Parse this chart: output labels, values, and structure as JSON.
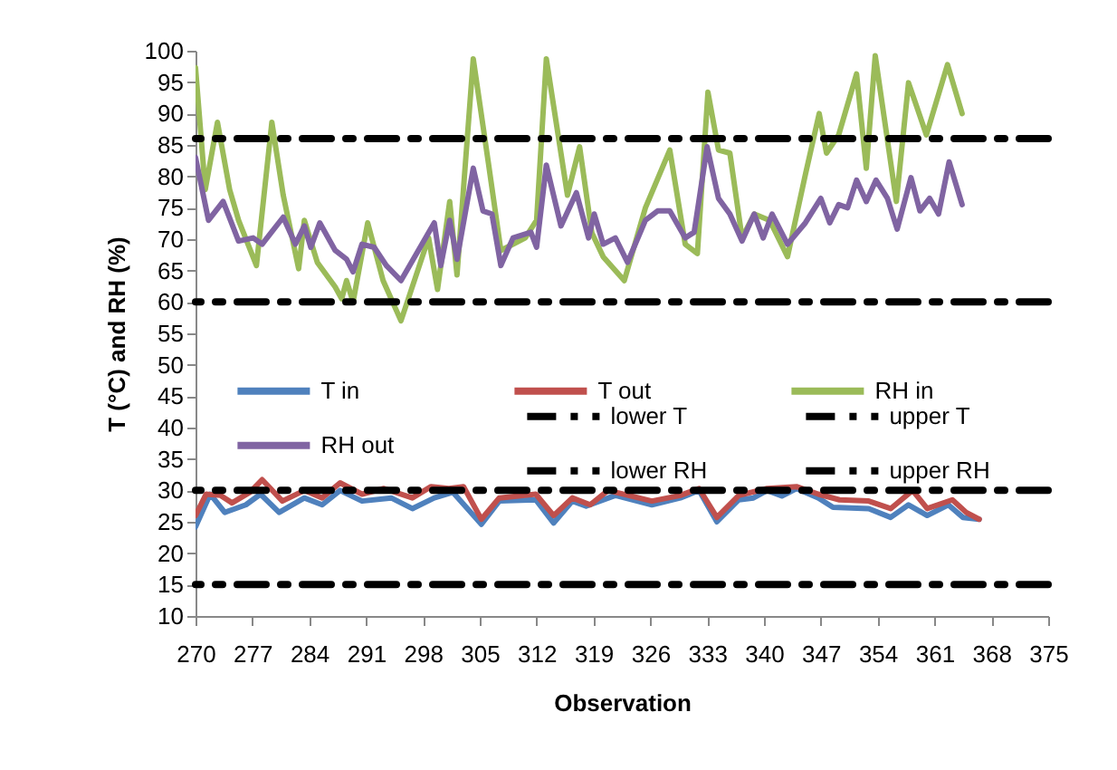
{
  "chart_data": {
    "type": "line",
    "xlabel": "Observation",
    "ylabel": "T (°C) and RH (%)",
    "xlim": [
      270,
      375
    ],
    "xticks": [
      270,
      277,
      284,
      291,
      298,
      305,
      312,
      319,
      326,
      333,
      340,
      347,
      354,
      361,
      368,
      375
    ],
    "ylim": [
      10,
      100
    ],
    "yticks": [
      10,
      15,
      20,
      25,
      30,
      35,
      40,
      45,
      50,
      55,
      60,
      65,
      70,
      75,
      80,
      85,
      90,
      95,
      100
    ],
    "grid": false,
    "legend": "center",
    "marker": "none",
    "line_style": "solid",
    "series": [
      {
        "name": "T in",
        "color": "#4f81bd",
        "x": [
          270,
          271.8,
          273.6,
          276.2,
          278,
          280.3,
          283.4,
          285.6,
          287.8,
          290.5,
          294.1,
          296.7,
          299.4,
          301.7,
          305.2,
          307.4,
          311.9,
          314.1,
          316.4,
          318.1,
          321.7,
          326.2,
          329.7,
          332,
          334.2,
          336.9,
          338.7,
          340.4,
          342.2,
          344,
          346.7,
          348.5,
          352.9,
          355.6,
          357.8,
          360.1,
          362.7,
          364.5,
          366.5
        ],
        "values": [
          24.2,
          29.4,
          26.5,
          27.7,
          29.4,
          26.5,
          28.8,
          27.7,
          30,
          28.3,
          28.8,
          27.1,
          28.8,
          29.7,
          24.6,
          28.3,
          28.5,
          24.8,
          28.3,
          27.5,
          29.2,
          27.7,
          28.8,
          30,
          25,
          28.5,
          28.8,
          30,
          29.1,
          30.3,
          28.8,
          27.3,
          27.1,
          25.7,
          27.7,
          26,
          27.7,
          25.7,
          25.4
        ]
      },
      {
        "name": "T out",
        "color": "#c0504d",
        "x": [
          270,
          271.3,
          273.1,
          274.5,
          276.7,
          278.2,
          280.7,
          283.4,
          285.6,
          287.8,
          290.5,
          293.2,
          296.7,
          299,
          301.2,
          303,
          305.2,
          307.4,
          311.9,
          314.1,
          316.4,
          318.6,
          320.8,
          326.2,
          329.7,
          332,
          334.2,
          336.9,
          340.4,
          344,
          346.7,
          349.3,
          352.9,
          355.6,
          358.3,
          360.1,
          363.2,
          364.9,
          366.5
        ],
        "values": [
          26,
          29.4,
          29.2,
          28,
          29.7,
          31.7,
          28.3,
          30,
          28.8,
          31.2,
          29.4,
          30.3,
          28.8,
          30.6,
          30.3,
          30.6,
          25.4,
          28.8,
          29.4,
          26,
          28.8,
          27.7,
          30,
          28.3,
          29.2,
          30.3,
          25.7,
          29.2,
          30.3,
          30.6,
          29.4,
          28.5,
          28.3,
          27.1,
          30,
          27.1,
          28.5,
          26.5,
          25.4
        ]
      },
      {
        "name": "RH in",
        "color": "#9bbb59",
        "x": [
          270,
          271.2,
          272.7,
          274.2,
          275.3,
          277.5,
          279.4,
          280.8,
          282.7,
          283.4,
          285,
          287.2,
          288,
          288.6,
          289.4,
          291.2,
          293.1,
          295.3,
          298.7,
          299.8,
          301.3,
          302.2,
          304.2,
          306.1,
          307.6,
          310.6,
          312,
          313.2,
          315.8,
          317.3,
          318.8,
          320.2,
          322.8,
          325.4,
          328.4,
          330.3,
          331.8,
          333.1,
          334.4,
          335.8,
          337.3,
          338.8,
          340.7,
          342.9,
          345.1,
          346.8,
          347.7,
          349.2,
          351.4,
          352.6,
          353.7,
          356.3,
          357.8,
          360,
          362.6,
          364.4
        ],
        "values": [
          97.3,
          77.9,
          88.6,
          77.9,
          73,
          65.8,
          88.6,
          77,
          65.3,
          73,
          66.3,
          62.4,
          60.5,
          63.4,
          60,
          72.6,
          63.4,
          57,
          70.2,
          62,
          76,
          64.3,
          98.7,
          81.8,
          68.2,
          70.2,
          73,
          98.7,
          77,
          84.7,
          71,
          67.2,
          63.4,
          75,
          84.2,
          69.2,
          67.7,
          93.4,
          84.2,
          83.7,
          70.2,
          74,
          73,
          67.2,
          80.3,
          90,
          83.7,
          86.6,
          96.3,
          81.3,
          99.2,
          76,
          94.9,
          86.6,
          97.8,
          90
        ]
      },
      {
        "name": "RH out",
        "color": "#8064a2",
        "x": [
          270,
          271.6,
          273.4,
          275.3,
          277.1,
          278.2,
          280.8,
          282.3,
          283.4,
          284.2,
          285.3,
          287.2,
          288.6,
          289.4,
          290.5,
          292,
          293.5,
          295.3,
          299.4,
          300.2,
          301.3,
          302.2,
          304.2,
          305.4,
          306.5,
          307.6,
          309.1,
          311.3,
          312,
          313.2,
          315,
          316.9,
          318.4,
          319.1,
          320.2,
          321.7,
          323.2,
          325.4,
          326.9,
          328.4,
          330.3,
          331.4,
          333,
          334.4,
          335.8,
          337.3,
          338.8,
          339.9,
          341,
          342.9,
          345.1,
          347,
          348.1,
          349.2,
          350.3,
          351.4,
          352.6,
          353.8,
          355.2,
          356.4,
          358.1,
          359.2,
          360.4,
          361.5,
          362.8,
          364.4
        ],
        "values": [
          83,
          73,
          76,
          69.7,
          70.2,
          69.2,
          73.5,
          69.2,
          72.1,
          68.7,
          72.6,
          68.2,
          66.8,
          64.8,
          69.2,
          68.7,
          65.8,
          63.4,
          72.6,
          65.8,
          73,
          66.8,
          81.3,
          74.5,
          74,
          65.8,
          70.2,
          71.1,
          68.7,
          81.8,
          72.1,
          77.4,
          70.2,
          74,
          69.2,
          70.2,
          66.3,
          73,
          74.5,
          74.5,
          70.2,
          71.1,
          84.7,
          76.5,
          74,
          69.7,
          74,
          70.2,
          74,
          69.2,
          72.6,
          76.5,
          72.6,
          75.5,
          75,
          79.4,
          76,
          79.4,
          76.5,
          71.6,
          79.8,
          74.5,
          76.5,
          74,
          82.3,
          75.5
        ]
      }
    ],
    "ref_lines": [
      {
        "axis": "y",
        "value": 15,
        "label": "lower T",
        "color": "#000000",
        "line_style": "dashed"
      },
      {
        "axis": "y",
        "value": 30,
        "label": "upper T",
        "color": "#000000",
        "line_style": "dashed"
      },
      {
        "axis": "y",
        "value": 60,
        "label": "lower RH",
        "color": "#000000",
        "line_style": "dashed"
      },
      {
        "axis": "y",
        "value": 86,
        "label": "upper RH",
        "color": "#000000",
        "line_style": "dashed"
      }
    ]
  }
}
